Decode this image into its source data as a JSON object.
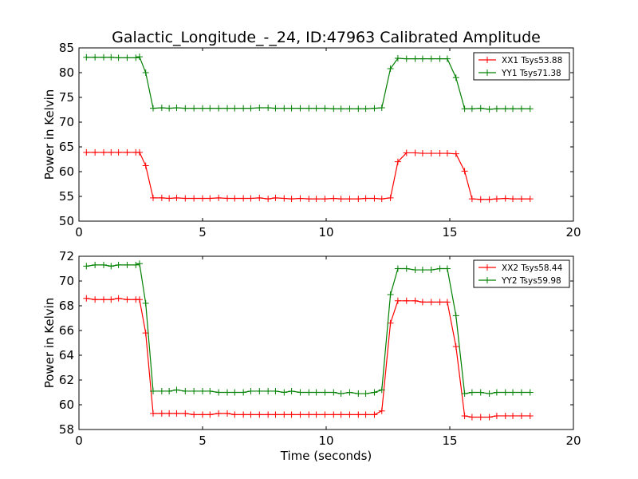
{
  "title": "Galactic_Longitude_-_24, ID:47963 Calibrated Amplitude",
  "colors": {
    "red": "#ff0000",
    "green": "#008000"
  },
  "chart_data": [
    {
      "type": "line",
      "xlabel": "",
      "ylabel": "Power in Kelvin",
      "xlim": [
        0,
        20
      ],
      "ylim": [
        50,
        85
      ],
      "xticks": [
        0,
        5,
        10,
        15,
        20
      ],
      "yticks": [
        50,
        55,
        60,
        65,
        70,
        75,
        80,
        85
      ],
      "legend_position": "top-right",
      "grid": false,
      "x": [
        0.3,
        0.65,
        1.0,
        1.3,
        1.6,
        1.95,
        2.3,
        2.45,
        2.7,
        3.0,
        3.35,
        3.65,
        3.95,
        4.3,
        4.65,
        5.0,
        5.3,
        5.65,
        6.0,
        6.3,
        6.65,
        6.95,
        7.3,
        7.65,
        7.95,
        8.3,
        8.6,
        8.95,
        9.3,
        9.6,
        9.95,
        10.3,
        10.6,
        10.95,
        11.3,
        11.6,
        11.95,
        12.25,
        12.6,
        12.9,
        13.25,
        13.6,
        13.9,
        14.25,
        14.6,
        14.9,
        15.25,
        15.6,
        15.9,
        16.25,
        16.6,
        16.9,
        17.25,
        17.55,
        17.9,
        18.25
      ],
      "series": [
        {
          "name": "XX1 Tsys53.88",
          "color": "#ff0000",
          "values": [
            63.9,
            63.9,
            63.9,
            63.9,
            63.9,
            63.9,
            63.9,
            63.9,
            61.2,
            54.7,
            54.7,
            54.6,
            54.7,
            54.6,
            54.6,
            54.6,
            54.6,
            54.7,
            54.6,
            54.6,
            54.6,
            54.6,
            54.7,
            54.5,
            54.7,
            54.6,
            54.5,
            54.6,
            54.5,
            54.5,
            54.5,
            54.6,
            54.5,
            54.5,
            54.5,
            54.6,
            54.6,
            54.5,
            54.7,
            62.0,
            63.8,
            63.8,
            63.7,
            63.7,
            63.7,
            63.7,
            63.6,
            60.1,
            54.5,
            54.4,
            54.4,
            54.5,
            54.6,
            54.5,
            54.5,
            54.5
          ]
        },
        {
          "name": "YY1 Tsys71.38",
          "color": "#008000",
          "values": [
            83.1,
            83.1,
            83.1,
            83.1,
            83.0,
            83.0,
            83.0,
            83.2,
            80.0,
            72.8,
            72.9,
            72.8,
            72.9,
            72.8,
            72.8,
            72.8,
            72.8,
            72.8,
            72.8,
            72.8,
            72.8,
            72.8,
            72.9,
            72.9,
            72.8,
            72.8,
            72.8,
            72.8,
            72.8,
            72.8,
            72.8,
            72.7,
            72.7,
            72.7,
            72.7,
            72.7,
            72.8,
            72.9,
            80.8,
            82.9,
            82.8,
            82.8,
            82.8,
            82.8,
            82.8,
            82.8,
            79.0,
            72.7,
            72.7,
            72.8,
            72.6,
            72.7,
            72.7,
            72.7,
            72.7,
            72.7
          ]
        }
      ]
    },
    {
      "type": "line",
      "xlabel": "Time (seconds)",
      "ylabel": "Power in Kelvin",
      "xlim": [
        0,
        20
      ],
      "ylim": [
        58,
        72
      ],
      "xticks": [
        0,
        5,
        10,
        15,
        20
      ],
      "yticks": [
        58,
        60,
        62,
        64,
        66,
        68,
        70,
        72
      ],
      "legend_position": "top-right",
      "grid": false,
      "x": [
        0.3,
        0.65,
        1.0,
        1.3,
        1.6,
        1.95,
        2.3,
        2.45,
        2.7,
        3.0,
        3.35,
        3.65,
        3.95,
        4.3,
        4.65,
        5.0,
        5.3,
        5.65,
        6.0,
        6.3,
        6.65,
        6.95,
        7.3,
        7.65,
        7.95,
        8.3,
        8.6,
        8.95,
        9.3,
        9.6,
        9.95,
        10.3,
        10.6,
        10.95,
        11.3,
        11.6,
        11.95,
        12.25,
        12.6,
        12.9,
        13.25,
        13.6,
        13.9,
        14.25,
        14.6,
        14.9,
        15.25,
        15.6,
        15.9,
        16.25,
        16.6,
        16.9,
        17.25,
        17.55,
        17.9,
        18.25
      ],
      "series": [
        {
          "name": "XX2 Tsys58.44",
          "color": "#ff0000",
          "values": [
            68.6,
            68.5,
            68.5,
            68.5,
            68.6,
            68.5,
            68.5,
            68.5,
            65.8,
            59.3,
            59.3,
            59.3,
            59.3,
            59.3,
            59.2,
            59.2,
            59.2,
            59.3,
            59.3,
            59.2,
            59.2,
            59.2,
            59.2,
            59.2,
            59.2,
            59.2,
            59.2,
            59.2,
            59.2,
            59.2,
            59.2,
            59.2,
            59.2,
            59.2,
            59.2,
            59.2,
            59.2,
            59.5,
            66.6,
            68.4,
            68.4,
            68.4,
            68.3,
            68.3,
            68.3,
            68.3,
            64.7,
            59.1,
            59.0,
            59.0,
            59.0,
            59.1,
            59.1,
            59.1,
            59.1,
            59.1
          ]
        },
        {
          "name": "YY2 Tsys59.98",
          "color": "#008000",
          "values": [
            71.2,
            71.3,
            71.3,
            71.2,
            71.3,
            71.3,
            71.3,
            71.4,
            68.2,
            61.1,
            61.1,
            61.1,
            61.2,
            61.1,
            61.1,
            61.1,
            61.1,
            61.0,
            61.0,
            61.0,
            61.0,
            61.1,
            61.1,
            61.1,
            61.1,
            61.0,
            61.1,
            61.0,
            61.0,
            61.0,
            61.0,
            61.0,
            60.9,
            61.0,
            60.9,
            60.9,
            61.0,
            61.2,
            68.9,
            71.0,
            71.0,
            70.9,
            70.9,
            70.9,
            71.0,
            71.0,
            67.2,
            60.9,
            61.0,
            61.0,
            60.9,
            61.0,
            61.0,
            61.0,
            61.0,
            61.0
          ]
        }
      ]
    }
  ]
}
